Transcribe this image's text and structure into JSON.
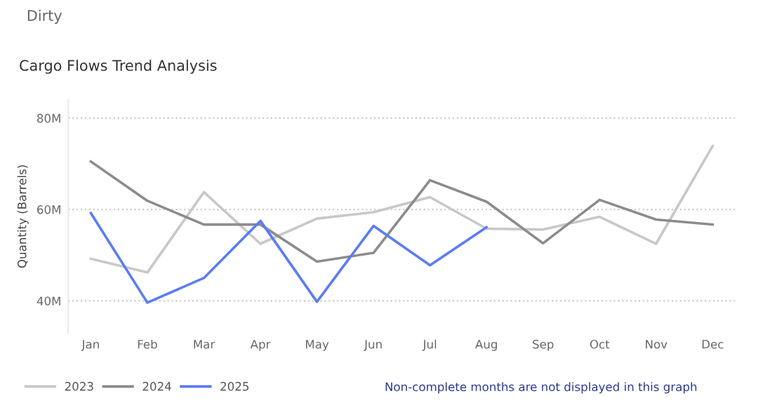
{
  "chart_data": {
    "type": "line",
    "title": "Cargo Flows Trend Analysis",
    "ylabel": "Quantity (Barrels)",
    "categories": [
      "Jan",
      "Feb",
      "Mar",
      "Apr",
      "May",
      "Jun",
      "Jul",
      "Aug",
      "Sep",
      "Oct",
      "Nov",
      "Dec"
    ],
    "series": [
      {
        "name": "2023",
        "color": "#c8c8c8",
        "values": [
          49.2,
          46.2,
          63.8,
          52.5,
          58.0,
          59.4,
          62.7,
          55.8,
          55.6,
          58.4,
          52.5,
          73.9
        ]
      },
      {
        "name": "2024",
        "color": "#8c8c8c",
        "values": [
          70.5,
          61.9,
          56.7,
          56.7,
          48.6,
          50.5,
          66.4,
          61.7,
          52.6,
          62.1,
          57.8,
          56.7
        ]
      },
      {
        "name": "2025",
        "color": "#5b7cf5",
        "values": [
          59.2,
          39.6,
          45.0,
          57.5,
          39.8,
          56.4,
          47.8,
          56.1,
          null,
          null,
          null,
          null
        ]
      }
    ],
    "ylim": [
      33,
      84
    ],
    "yticks": [
      {
        "value": 40,
        "label": "40M"
      },
      {
        "value": 60,
        "label": "60M"
      },
      {
        "value": 80,
        "label": "80M"
      }
    ],
    "grid": "y",
    "legend": "bottom left",
    "marker": "none",
    "line_style": "solid",
    "annotations": [
      "Dirty",
      "Non-complete months are not displayed in this graph"
    ]
  }
}
